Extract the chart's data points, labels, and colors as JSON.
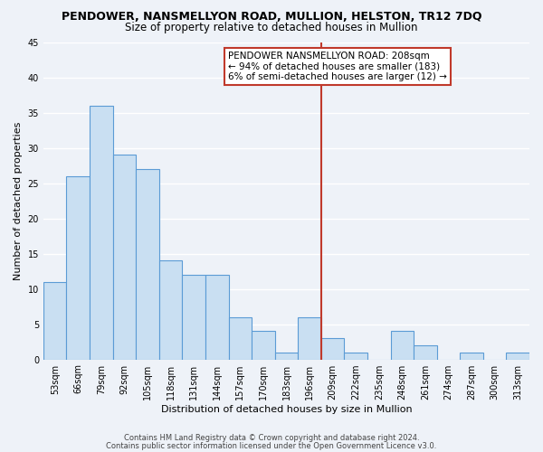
{
  "title": "PENDOWER, NANSMELLYON ROAD, MULLION, HELSTON, TR12 7DQ",
  "subtitle": "Size of property relative to detached houses in Mullion",
  "xlabel": "Distribution of detached houses by size in Mullion",
  "ylabel": "Number of detached properties",
  "bin_labels": [
    "53sqm",
    "66sqm",
    "79sqm",
    "92sqm",
    "105sqm",
    "118sqm",
    "131sqm",
    "144sqm",
    "157sqm",
    "170sqm",
    "183sqm",
    "196sqm",
    "209sqm",
    "222sqm",
    "235sqm",
    "248sqm",
    "261sqm",
    "274sqm",
    "287sqm",
    "300sqm",
    "313sqm"
  ],
  "bar_values": [
    11,
    26,
    36,
    29,
    27,
    14,
    12,
    12,
    6,
    4,
    1,
    6,
    3,
    1,
    0,
    4,
    2,
    0,
    1,
    0,
    1
  ],
  "bar_color": "#c9dff2",
  "bar_edge_color": "#5b9bd5",
  "vline_index": 12,
  "vline_color": "#c0392b",
  "annotation_box_color": "#c0392b",
  "ylim": [
    0,
    45
  ],
  "yticks": [
    0,
    5,
    10,
    15,
    20,
    25,
    30,
    35,
    40,
    45
  ],
  "annotation_text": "PENDOWER NANSMELLYON ROAD: 208sqm\n← 94% of detached houses are smaller (183)\n6% of semi-detached houses are larger (12) →",
  "footer_line1": "Contains HM Land Registry data © Crown copyright and database right 2024.",
  "footer_line2": "Contains public sector information licensed under the Open Government Licence v3.0.",
  "background_color": "#eef2f8",
  "grid_color": "white",
  "title_fontsize": 9,
  "subtitle_fontsize": 8.5,
  "axis_label_fontsize": 8,
  "tick_fontsize": 7,
  "annotation_fontsize": 7.5,
  "footer_fontsize": 6
}
